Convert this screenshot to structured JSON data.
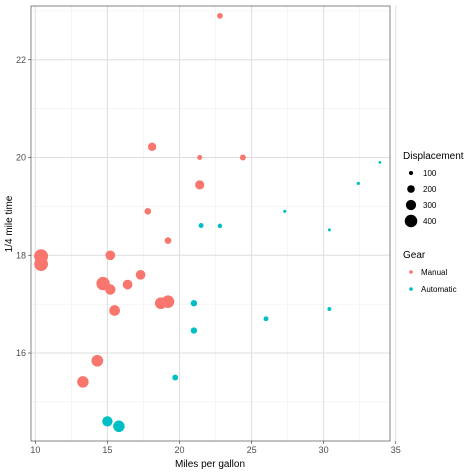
{
  "chart_data": {
    "type": "scatter",
    "xlabel": "Miles per gallon",
    "ylabel": "1/4 mile time",
    "xlim": [
      9.7,
      34.6
    ],
    "ylim": [
      14.2,
      23.1
    ],
    "x_ticks": [
      10,
      15,
      20,
      25,
      30,
      35
    ],
    "y_ticks": [
      16,
      18,
      20,
      22
    ],
    "grid": true,
    "legend_placement": "right",
    "size_legend": {
      "title": "Displacement",
      "values": [
        100,
        200,
        300,
        400
      ]
    },
    "color_legend": {
      "title": "Gear",
      "entries": [
        {
          "label": "Manual",
          "color": "#F8766D"
        },
        {
          "label": "Automatic",
          "color": "#00BFC4"
        }
      ]
    },
    "series": [
      {
        "name": "Manual",
        "color": "#F8766D",
        "points": [
          {
            "x": 22.8,
            "y": 22.9,
            "disp": 141
          },
          {
            "x": 18.1,
            "y": 20.22,
            "disp": 225
          },
          {
            "x": 21.4,
            "y": 20.0,
            "disp": 121
          },
          {
            "x": 24.4,
            "y": 20.0,
            "disp": 147
          },
          {
            "x": 21.4,
            "y": 19.44,
            "disp": 258
          },
          {
            "x": 17.8,
            "y": 18.9,
            "disp": 168
          },
          {
            "x": 19.2,
            "y": 18.3,
            "disp": 168
          },
          {
            "x": 10.4,
            "y": 17.98,
            "disp": 472
          },
          {
            "x": 10.4,
            "y": 17.82,
            "disp": 460
          },
          {
            "x": 15.2,
            "y": 18.0,
            "disp": 276
          },
          {
            "x": 14.7,
            "y": 17.42,
            "disp": 440
          },
          {
            "x": 15.2,
            "y": 17.3,
            "disp": 304
          },
          {
            "x": 17.3,
            "y": 17.6,
            "disp": 276
          },
          {
            "x": 16.4,
            "y": 17.4,
            "disp": 276
          },
          {
            "x": 18.7,
            "y": 17.02,
            "disp": 360
          },
          {
            "x": 19.2,
            "y": 17.05,
            "disp": 400
          },
          {
            "x": 15.5,
            "y": 16.87,
            "disp": 318
          },
          {
            "x": 14.3,
            "y": 15.84,
            "disp": 360
          },
          {
            "x": 13.3,
            "y": 15.41,
            "disp": 350
          }
        ]
      },
      {
        "name": "Automatic",
        "color": "#00BFC4",
        "points": [
          {
            "x": 33.9,
            "y": 19.9,
            "disp": 71
          },
          {
            "x": 32.4,
            "y": 19.47,
            "disp": 79
          },
          {
            "x": 27.3,
            "y": 18.9,
            "disp": 79
          },
          {
            "x": 30.4,
            "y": 18.52,
            "disp": 76
          },
          {
            "x": 21.5,
            "y": 18.61,
            "disp": 120
          },
          {
            "x": 22.8,
            "y": 18.6,
            "disp": 108
          },
          {
            "x": 21.0,
            "y": 17.02,
            "disp": 160
          },
          {
            "x": 30.4,
            "y": 16.9,
            "disp": 95
          },
          {
            "x": 26.0,
            "y": 16.7,
            "disp": 120
          },
          {
            "x": 21.0,
            "y": 16.46,
            "disp": 160
          },
          {
            "x": 19.7,
            "y": 15.5,
            "disp": 145
          },
          {
            "x": 15.0,
            "y": 14.6,
            "disp": 301
          },
          {
            "x": 15.8,
            "y": 14.5,
            "disp": 351
          }
        ]
      }
    ]
  }
}
